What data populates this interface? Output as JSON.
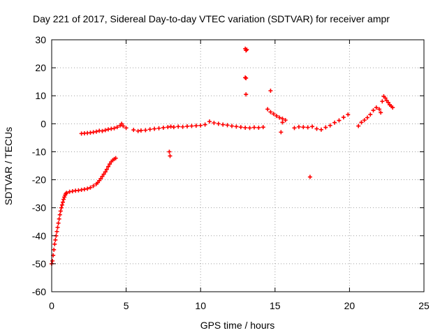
{
  "chart_data": {
    "type": "scatter",
    "title": "Day 221 of 2017, Sidereal Day-to-day VTEC variation (SDTVAR) for receiver ampr",
    "xlabel": "GPS time / hours",
    "ylabel": "SDTVAR / TECUs",
    "xlim": [
      0,
      25
    ],
    "ylim": [
      -60,
      30
    ],
    "xticks": [
      0,
      5,
      10,
      15,
      20,
      25
    ],
    "yticks": [
      -60,
      -50,
      -40,
      -30,
      -20,
      -10,
      0,
      10,
      20,
      30
    ],
    "grid": true,
    "marker": "+",
    "color": "#ff0000",
    "series": [
      {
        "name": "SDTVAR",
        "points": [
          [
            0.0,
            -50
          ],
          [
            0.05,
            -49
          ],
          [
            0.1,
            -47
          ],
          [
            0.15,
            -45
          ],
          [
            0.2,
            -43
          ],
          [
            0.25,
            -41.5
          ],
          [
            0.3,
            -40
          ],
          [
            0.35,
            -38.5
          ],
          [
            0.4,
            -37
          ],
          [
            0.45,
            -35.5
          ],
          [
            0.5,
            -34
          ],
          [
            0.55,
            -32.5
          ],
          [
            0.6,
            -31.2
          ],
          [
            0.65,
            -30
          ],
          [
            0.7,
            -29
          ],
          [
            0.75,
            -28
          ],
          [
            0.8,
            -27
          ],
          [
            0.85,
            -26.2
          ],
          [
            0.9,
            -25.5
          ],
          [
            0.95,
            -25
          ],
          [
            1.0,
            -24.7
          ],
          [
            1.2,
            -24.3
          ],
          [
            1.4,
            -24.1
          ],
          [
            1.6,
            -23.9
          ],
          [
            1.8,
            -23.8
          ],
          [
            2.0,
            -23.6
          ],
          [
            2.2,
            -23.4
          ],
          [
            2.4,
            -23.2
          ],
          [
            2.6,
            -22.8
          ],
          [
            2.8,
            -22.2
          ],
          [
            3.0,
            -21.5
          ],
          [
            3.1,
            -21
          ],
          [
            3.2,
            -20.3
          ],
          [
            3.3,
            -19.6
          ],
          [
            3.4,
            -18.8
          ],
          [
            3.5,
            -18
          ],
          [
            3.6,
            -17.2
          ],
          [
            3.7,
            -16.3
          ],
          [
            3.8,
            -15.3
          ],
          [
            3.9,
            -14.4
          ],
          [
            4.0,
            -13.6
          ],
          [
            4.1,
            -13
          ],
          [
            4.2,
            -12.6
          ],
          [
            4.3,
            -12.3
          ],
          [
            2.0,
            -3.5
          ],
          [
            2.2,
            -3.4
          ],
          [
            2.4,
            -3.3
          ],
          [
            2.6,
            -3.2
          ],
          [
            2.8,
            -3.0
          ],
          [
            3.0,
            -2.8
          ],
          [
            3.2,
            -2.5
          ],
          [
            3.4,
            -2.6
          ],
          [
            3.6,
            -2.3
          ],
          [
            3.8,
            -2.0
          ],
          [
            4.0,
            -1.8
          ],
          [
            4.2,
            -1.6
          ],
          [
            4.4,
            -1.2
          ],
          [
            4.6,
            -0.6
          ],
          [
            4.7,
            0.0
          ],
          [
            4.8,
            -0.8
          ],
          [
            5.0,
            -1.5
          ],
          [
            5.5,
            -2.2
          ],
          [
            5.8,
            -2.6
          ],
          [
            6.0,
            -2.4
          ],
          [
            6.3,
            -2.3
          ],
          [
            6.6,
            -2.0
          ],
          [
            6.9,
            -1.8
          ],
          [
            7.2,
            -1.6
          ],
          [
            7.5,
            -1.4
          ],
          [
            7.8,
            -1.2
          ],
          [
            8.0,
            -1.0
          ],
          [
            7.9,
            -10
          ],
          [
            7.95,
            -11.5
          ],
          [
            8.2,
            -1.2
          ],
          [
            8.5,
            -1.0
          ],
          [
            8.8,
            -1.1
          ],
          [
            9.1,
            -0.9
          ],
          [
            9.4,
            -0.8
          ],
          [
            9.7,
            -0.7
          ],
          [
            10.0,
            -0.6
          ],
          [
            10.3,
            -0.3
          ],
          [
            10.6,
            0.8
          ],
          [
            10.9,
            0.3
          ],
          [
            11.2,
            0.0
          ],
          [
            11.5,
            -0.3
          ],
          [
            11.8,
            -0.5
          ],
          [
            12.1,
            -0.8
          ],
          [
            12.4,
            -1.0
          ],
          [
            12.7,
            -1.2
          ],
          [
            13.0,
            -1.4
          ],
          [
            13.3,
            -1.5
          ],
          [
            13.6,
            -1.3
          ],
          [
            13.9,
            -1.4
          ],
          [
            14.2,
            -1.2
          ],
          [
            13.0,
            26.8
          ],
          [
            13.05,
            26.2
          ],
          [
            13.1,
            26.5
          ],
          [
            13.0,
            16.5
          ],
          [
            13.05,
            16.3
          ],
          [
            13.05,
            10.5
          ],
          [
            14.7,
            11.8
          ],
          [
            17.35,
            -19
          ],
          [
            14.5,
            5.2
          ],
          [
            14.7,
            4.2
          ],
          [
            14.9,
            3.5
          ],
          [
            15.1,
            2.8
          ],
          [
            15.3,
            2.2
          ],
          [
            15.5,
            1.8
          ],
          [
            15.7,
            1.3
          ],
          [
            15.5,
            0.5
          ],
          [
            15.4,
            -3.0
          ],
          [
            16.3,
            -1.5
          ],
          [
            16.6,
            -1.1
          ],
          [
            16.9,
            -1.2
          ],
          [
            17.2,
            -1.3
          ],
          [
            17.5,
            -1.0
          ],
          [
            17.8,
            -1.8
          ],
          [
            18.1,
            -2.1
          ],
          [
            18.4,
            -1.3
          ],
          [
            18.7,
            -0.6
          ],
          [
            19.0,
            0.4
          ],
          [
            19.3,
            1.2
          ],
          [
            19.6,
            2.3
          ],
          [
            19.9,
            3.3
          ],
          [
            20.6,
            -0.8
          ],
          [
            20.8,
            0.5
          ],
          [
            21.0,
            1.3
          ],
          [
            21.2,
            2.2
          ],
          [
            21.4,
            3.3
          ],
          [
            21.6,
            4.8
          ],
          [
            21.8,
            5.8
          ],
          [
            22.0,
            5.2
          ],
          [
            22.1,
            4.0
          ],
          [
            22.2,
            8.0
          ],
          [
            22.3,
            9.8
          ],
          [
            22.4,
            9.2
          ],
          [
            22.5,
            8.3
          ],
          [
            22.6,
            7.6
          ],
          [
            22.7,
            6.8
          ],
          [
            22.8,
            6.3
          ],
          [
            22.9,
            5.8
          ]
        ]
      }
    ]
  }
}
